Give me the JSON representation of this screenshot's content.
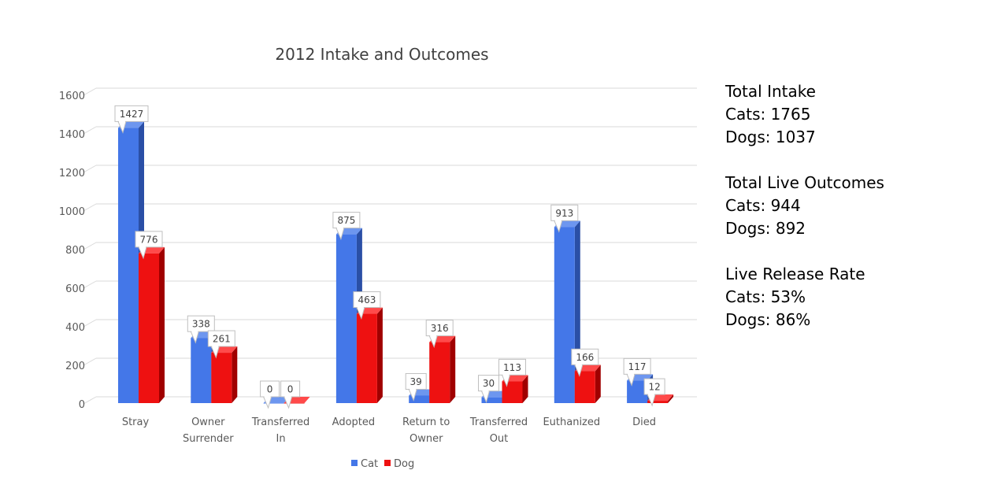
{
  "chart_data": {
    "type": "bar",
    "title": "2012 Intake and Outcomes",
    "xlabel": "",
    "ylabel": "",
    "ylim": [
      0,
      1600
    ],
    "yticks": [
      0,
      200,
      400,
      600,
      800,
      1000,
      1200,
      1400,
      1600
    ],
    "categories": [
      [
        "Stray"
      ],
      [
        "Owner",
        "Surrender"
      ],
      [
        "Transferred",
        "In"
      ],
      [
        "Adopted"
      ],
      [
        "Return to",
        "Owner"
      ],
      [
        "Transferred",
        "Out"
      ],
      [
        "Euthanized"
      ],
      [
        "Died"
      ]
    ],
    "series": [
      {
        "name": "Cat",
        "color": "#4477e8",
        "values": [
          1427,
          338,
          0,
          875,
          39,
          30,
          913,
          117
        ]
      },
      {
        "name": "Dog",
        "color": "#ee1111",
        "values": [
          776,
          261,
          0,
          463,
          316,
          113,
          166,
          12
        ]
      }
    ],
    "legend_position": "bottom",
    "grid": true
  },
  "sidebar": {
    "intake": {
      "heading": "Total Intake",
      "cats": "Cats: 1765",
      "dogs": "Dogs: 1037"
    },
    "live": {
      "heading": "Total Live Outcomes",
      "cats": "Cats: 944",
      "dogs": "Dogs: 892"
    },
    "rate": {
      "heading": "Live Release Rate",
      "cats": "Cats: 53%",
      "dogs": "Dogs: 86%"
    }
  }
}
